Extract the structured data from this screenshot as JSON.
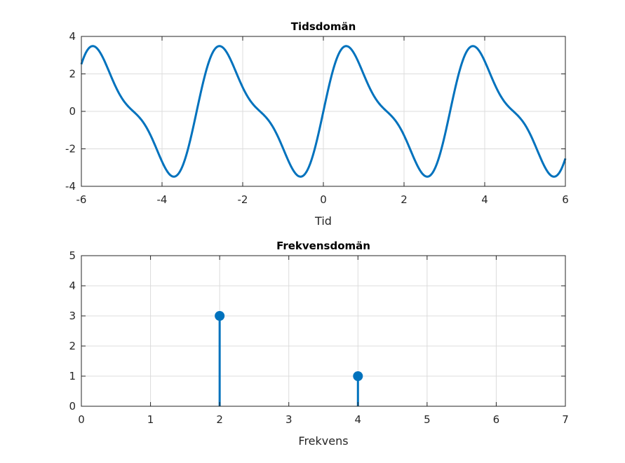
{
  "chart_data": [
    {
      "type": "line",
      "title": "Tidsdomän",
      "xlabel": "Tid",
      "ylabel": "",
      "xlim": [
        -6,
        6
      ],
      "ylim": [
        -4,
        4
      ],
      "xticks": [
        -6,
        -4,
        -2,
        0,
        2,
        4,
        6
      ],
      "yticks": [
        -4,
        -2,
        0,
        2,
        4
      ],
      "xtick_labels": [
        "-6",
        "-4",
        "-2",
        "0",
        "2",
        "4",
        "6"
      ],
      "ytick_labels": [
        "-4",
        "-2",
        "0",
        "2",
        "4"
      ],
      "grid": true,
      "series": [
        {
          "color": "#0072BD",
          "function": "3*sin(2*t) + sin(4*t)",
          "samples": 600
        }
      ]
    },
    {
      "type": "stem",
      "title": "Frekvensdomän",
      "xlabel": "Frekvens",
      "ylabel": "",
      "xlim": [
        0,
        7
      ],
      "ylim": [
        0,
        5
      ],
      "xticks": [
        0,
        1,
        2,
        3,
        4,
        5,
        6,
        7
      ],
      "yticks": [
        0,
        1,
        2,
        3,
        4,
        5
      ],
      "xtick_labels": [
        "0",
        "1",
        "2",
        "3",
        "4",
        "5",
        "6",
        "7"
      ],
      "ytick_labels": [
        "0",
        "1",
        "2",
        "3",
        "4",
        "5"
      ],
      "grid": true,
      "x": [
        2,
        4
      ],
      "values": [
        3,
        1
      ],
      "color": "#0072BD"
    }
  ]
}
